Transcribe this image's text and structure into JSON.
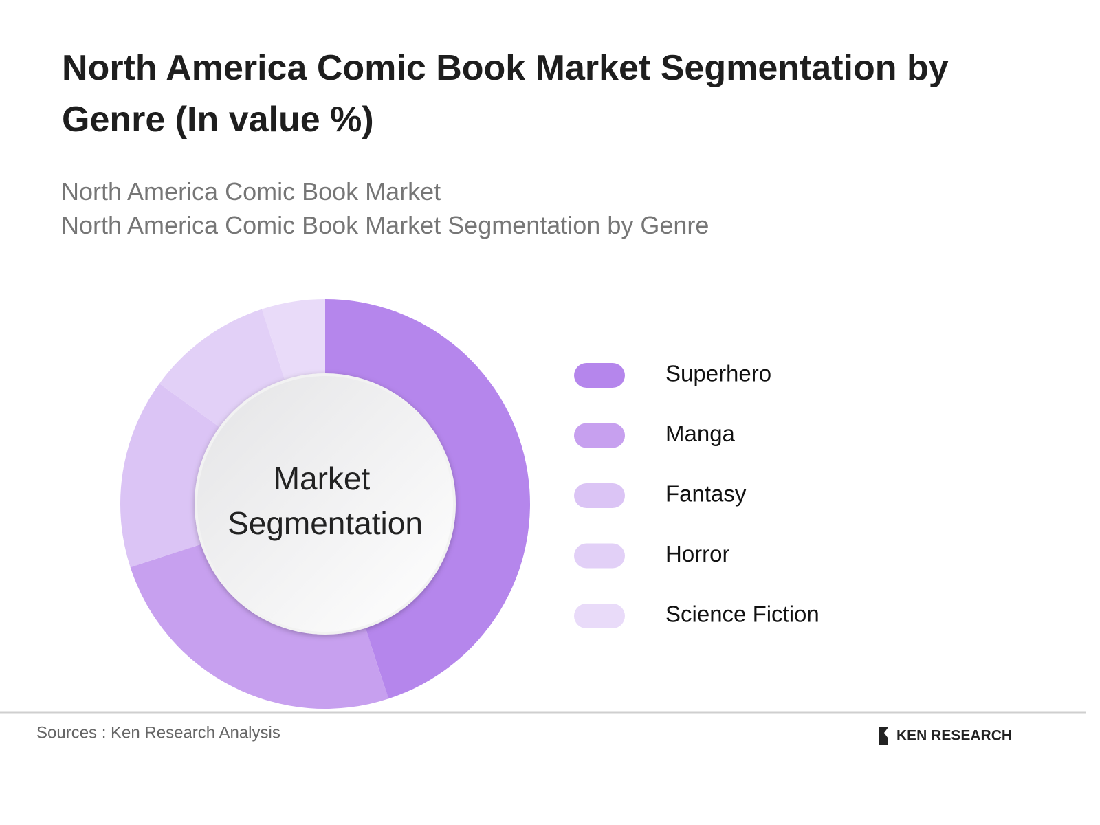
{
  "chart_data": {
    "type": "donut",
    "title": "North America Comic Book Market Segmentation by Genre (In value %)",
    "subtitle": [
      "North America Comic Book Market",
      "North America Comic Book Market Segmentation by Genre"
    ],
    "center_label": [
      "Market",
      "Segmentation"
    ],
    "categories": [
      "Superhero",
      "Manga",
      "Fantasy",
      "Horror",
      "Science Fiction"
    ],
    "values": [
      45,
      25,
      15,
      10,
      5
    ],
    "colors": [
      "#b586ec",
      "#c7a0ef",
      "#dbc4f5",
      "#e2d0f7",
      "#e9dbf9"
    ],
    "source": "Sources : Ken Research Analysis",
    "logo": "KEN RESEARCH"
  }
}
